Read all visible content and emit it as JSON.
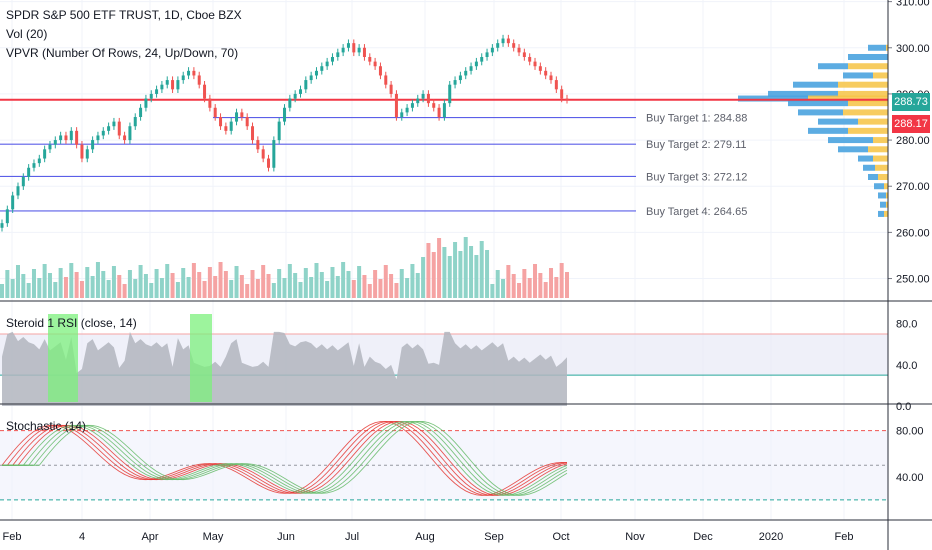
{
  "header": {
    "title": "SPDR S&P 500 ETF TRUST, 1D, Cboe BZX",
    "indicator_vol": "Vol (20)",
    "indicator_vpvr": "VPVR (Number Of Rows, 24, Up/Down, 70)"
  },
  "price_badges": {
    "last": "288.73",
    "last_color": "#26a69a",
    "marker": "288.17",
    "marker_color": "#f23645"
  },
  "rsi_pane": {
    "label": "Steroid 1 RSI (close, 14)",
    "ticks": [
      "80.0",
      "40.0",
      "0.0"
    ]
  },
  "stoch_pane": {
    "label": "Stochastic (14)",
    "ticks": [
      "80.00",
      "40.00"
    ]
  },
  "time_axis": [
    "Feb",
    "4",
    "Apr",
    "May",
    "Jun",
    "Jul",
    "Aug",
    "Sep",
    "Oct",
    "Nov",
    "Dec",
    "2020",
    "Feb"
  ],
  "chart_data": {
    "type": "line",
    "symbol": "SPY",
    "title": "SPDR S&P 500 ETF TRUST, 1D, Cboe BZX",
    "ylim": [
      246,
      311
    ],
    "y_ticks": [
      "310.00",
      "300.00",
      "290.00",
      "280.00",
      "270.00",
      "260.00",
      "250.00"
    ],
    "grid": true,
    "buy_targets": [
      {
        "label": "Buy Target 1: 284.88",
        "value": 284.88
      },
      {
        "label": "Buy Target 2: 279.11",
        "value": 279.11
      },
      {
        "label": "Buy Target 3: 272.12",
        "value": 272.12
      },
      {
        "label": "Buy Target 4: 264.65",
        "value": 264.65
      }
    ],
    "resistance_line": 288.73,
    "series": [
      {
        "values": [
          262,
          265,
          268,
          270,
          272,
          274,
          275,
          276,
          278,
          279,
          280,
          281,
          280,
          282,
          279,
          276,
          278,
          280,
          281,
          282,
          283,
          284,
          281,
          280,
          283,
          285,
          287,
          289,
          290,
          291,
          292,
          293,
          291,
          293,
          294,
          295,
          294,
          292,
          289,
          287,
          285,
          283,
          282,
          284,
          286,
          285,
          283,
          280,
          278,
          276,
          274,
          280,
          284,
          287,
          289,
          290,
          291,
          293,
          294,
          295,
          296,
          297,
          298,
          299,
          300,
          301,
          299,
          300,
          298,
          297,
          296,
          294,
          292,
          290,
          285,
          286,
          287,
          288,
          289,
          290,
          288,
          287,
          285,
          288,
          292,
          293,
          294,
          295,
          296,
          297,
          298,
          299,
          300,
          301,
          302,
          301,
          300,
          299,
          298,
          297,
          296,
          295,
          294,
          293,
          291,
          289,
          288.73
        ]
      }
    ]
  }
}
